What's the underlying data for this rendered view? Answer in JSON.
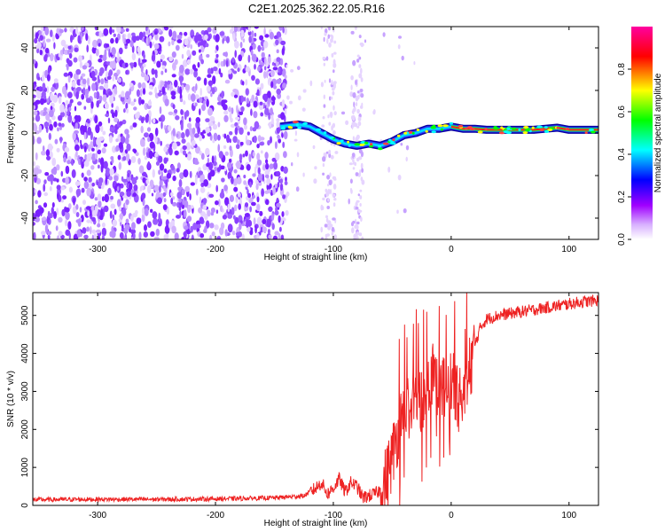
{
  "title": "C2E1.2025.362.22.05.R16",
  "chart_data": [
    {
      "type": "heatmap",
      "xlabel": "Height of straight line (km)",
      "ylabel": "Frequency (Hz)",
      "xlim": [
        -355,
        125
      ],
      "ylim": [
        -50,
        50
      ],
      "x_ticks": [
        -300,
        -200,
        -100,
        0,
        100
      ],
      "y_ticks": [
        -40,
        -20,
        0,
        20,
        40
      ],
      "colorbar": {
        "label": "Normalized spectral amplitude",
        "range": [
          0,
          1
        ],
        "ticks": [
          "0.0",
          "0.2",
          "0.4",
          "0.6",
          "0.8"
        ],
        "colors": [
          "#ffffff",
          "#a000ff",
          "#0000ff",
          "#00ffff",
          "#00ff00",
          "#ffff00",
          "#ff0000",
          "#ff00a0"
        ]
      },
      "ridge": {
        "x": [
          -145,
          -130,
          -120,
          -110,
          -100,
          -90,
          -80,
          -70,
          -60,
          -50,
          -40,
          -30,
          -20,
          -10,
          0,
          10,
          20,
          30,
          50,
          70,
          80,
          90,
          100,
          125
        ],
        "y": [
          3,
          4,
          3,
          0,
          -3,
          -5,
          -6,
          -5,
          -6,
          -4,
          -1,
          0,
          2,
          2,
          3,
          2,
          2,
          1.5,
          1.5,
          1.5,
          2,
          2.5,
          1.5,
          1.5
        ]
      },
      "noise_region_x": [
        -355,
        -140
      ]
    },
    {
      "type": "line",
      "xlabel": "Height of straight line (km)",
      "ylabel": "SNR (10 * v/v)",
      "xlim": [
        -355,
        125
      ],
      "ylim": [
        0,
        5600
      ],
      "x_ticks": [
        -300,
        -200,
        -100,
        0,
        100
      ],
      "y_ticks": [
        0,
        1000,
        2000,
        3000,
        4000,
        5000
      ],
      "series": [
        {
          "color": "#ee2222",
          "x": [
            -355,
            -300,
            -250,
            -200,
            -150,
            -125,
            -115,
            -110,
            -105,
            -100,
            -95,
            -90,
            -85,
            -80,
            -75,
            -70,
            -65,
            -60,
            -55,
            -50,
            -45,
            -40,
            -35,
            -30,
            -25,
            -20,
            -15,
            -10,
            -5,
            0,
            5,
            10,
            15,
            20,
            25,
            30,
            40,
            50,
            60,
            70,
            80,
            90,
            100,
            110,
            125
          ],
          "y": [
            150,
            160,
            160,
            170,
            200,
            250,
            450,
            600,
            300,
            450,
            700,
            350,
            600,
            500,
            200,
            250,
            300,
            400,
            700,
            1300,
            2000,
            2400,
            2600,
            2900,
            2800,
            3100,
            3700,
            3000,
            3100,
            3300,
            2800,
            2900,
            3500,
            4200,
            4700,
            4900,
            5000,
            5050,
            5100,
            5150,
            5200,
            5250,
            5300,
            5350,
            5400
          ]
        }
      ]
    }
  ]
}
